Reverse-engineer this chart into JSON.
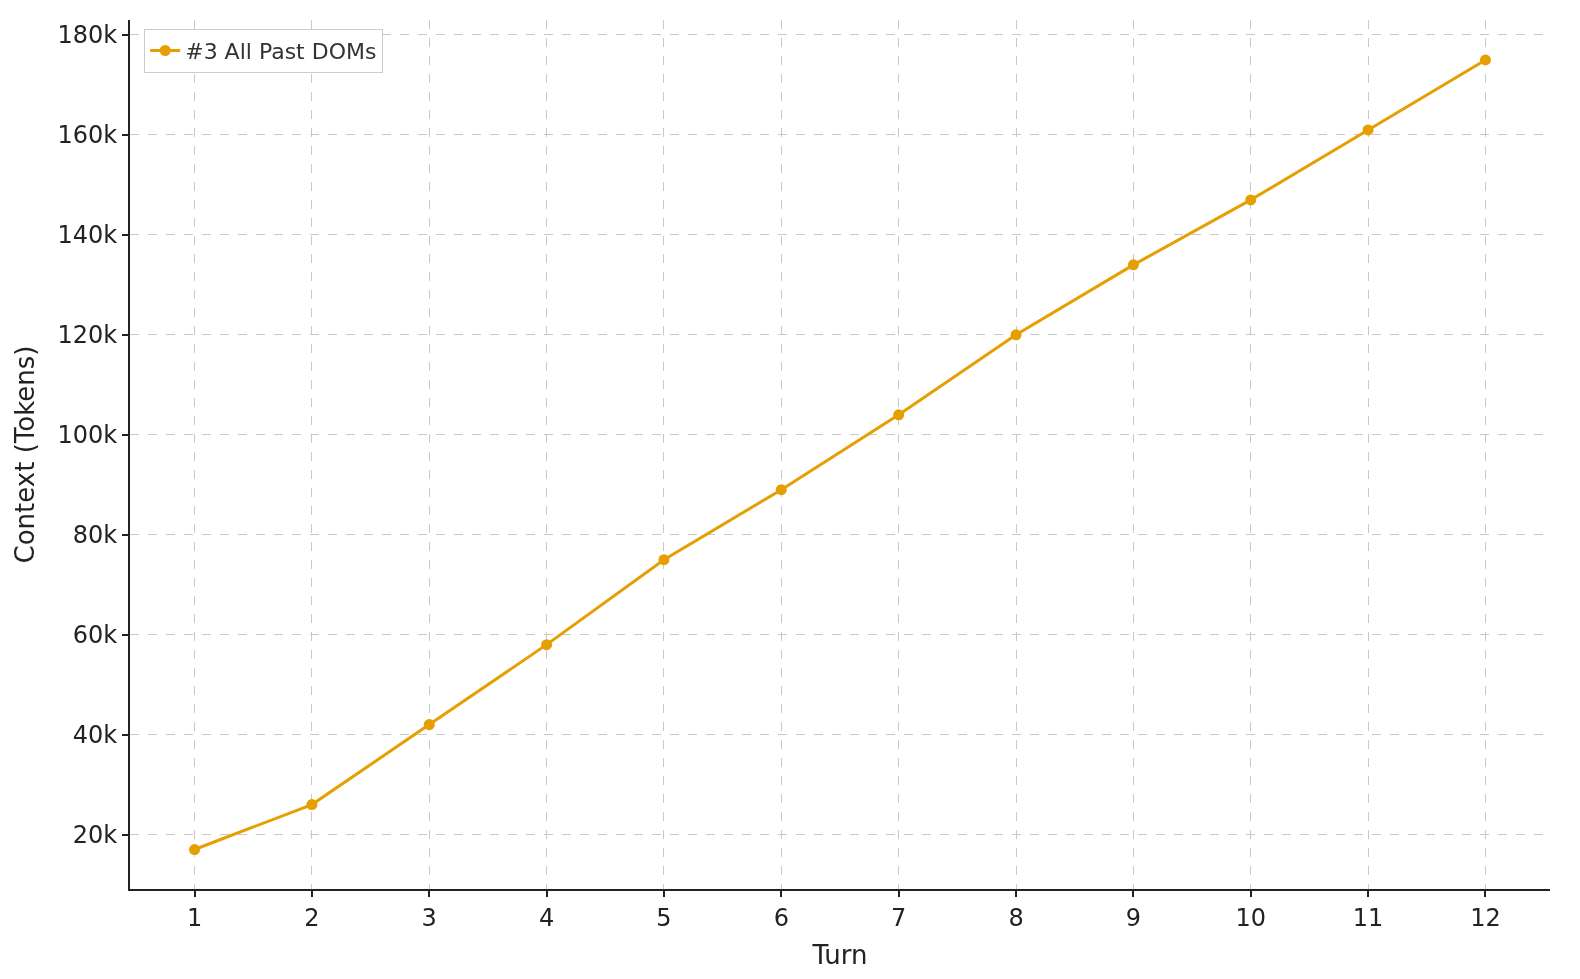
{
  "chart_data": {
    "type": "line",
    "xlabel": "Turn",
    "ylabel": "Context (Tokens)",
    "x": [
      1,
      2,
      3,
      4,
      5,
      6,
      7,
      8,
      9,
      10,
      11,
      12
    ],
    "series": [
      {
        "name": "#3 All Past DOMs",
        "color": "#e69f00",
        "values": [
          17000,
          26000,
          42000,
          58000,
          75000,
          89000,
          104000,
          120000,
          134000,
          147000,
          161000,
          175000
        ]
      }
    ],
    "xlim": [
      0.45,
      12.55
    ],
    "xticks": [
      1,
      2,
      3,
      4,
      5,
      6,
      7,
      8,
      9,
      10,
      11,
      12
    ],
    "ylim": [
      9100,
      183000
    ],
    "yticks": [
      {
        "value": 20000,
        "label": "20k"
      },
      {
        "value": 40000,
        "label": "40k"
      },
      {
        "value": 60000,
        "label": "60k"
      },
      {
        "value": 80000,
        "label": "80k"
      },
      {
        "value": 100000,
        "label": "100k"
      },
      {
        "value": 120000,
        "label": "120k"
      },
      {
        "value": 140000,
        "label": "140k"
      },
      {
        "value": 160000,
        "label": "160k"
      },
      {
        "value": 180000,
        "label": "180k"
      }
    ],
    "grid": true,
    "legend": "top left",
    "marker": "circle",
    "line_style": "solid"
  }
}
